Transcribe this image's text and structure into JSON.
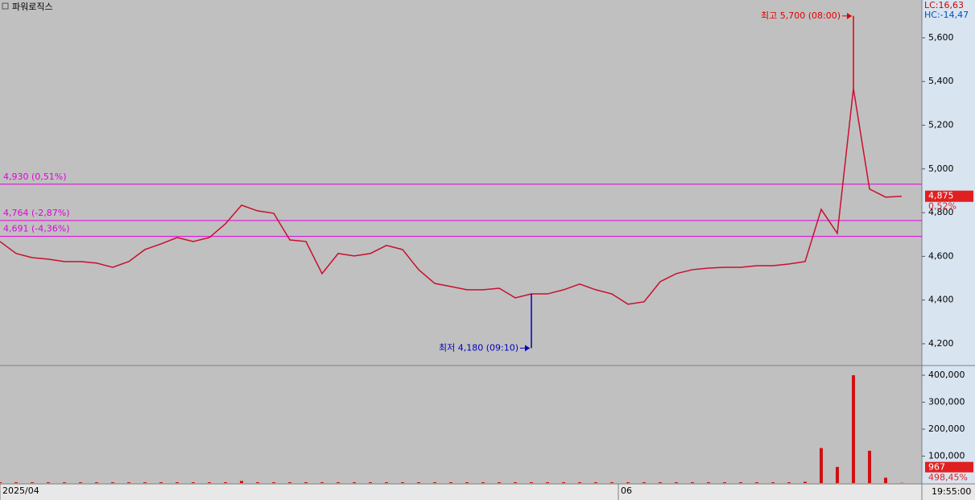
{
  "chart_data": {
    "type": "line",
    "title": "파워로직스",
    "indicators": [
      "LC:16,63",
      "HC:-14,47"
    ],
    "series": [
      {
        "color": "#c8102e",
        "values": [
          4668,
          4613,
          4594,
          4587,
          4576,
          4576,
          4569,
          4550,
          4576,
          4631,
          4657,
          4686,
          4668,
          4686,
          4749,
          4834,
          4808,
          4797,
          4675,
          4668,
          4521,
          4613,
          4602,
          4613,
          4650,
          4631,
          4539,
          4476,
          4462,
          4447,
          4447,
          4454,
          4410,
          4428,
          4428,
          4447,
          4473,
          4447,
          4428,
          4381,
          4392,
          4484,
          4521,
          4539,
          4546,
          4550,
          4550,
          4557,
          4557,
          4565,
          4576,
          4815,
          4705,
          5368,
          4908,
          4871,
          4875
        ]
      }
    ],
    "xlim": [
      0,
      57.25
    ],
    "xticks": [
      {
        "value": 0,
        "label": "2025/04"
      },
      {
        "value": 38.4,
        "label": "06"
      }
    ],
    "time_label": "19:55:00",
    "ylim": [
      4104,
      5773
    ],
    "yticks": [
      {
        "value": 4200,
        "label": "4,200"
      },
      {
        "value": 4400,
        "label": "4,400"
      },
      {
        "value": 4600,
        "label": "4,600"
      },
      {
        "value": 4800,
        "label": "4,800"
      },
      {
        "value": 5000,
        "label": "5,000"
      },
      {
        "value": 5200,
        "label": "5,200"
      },
      {
        "value": 5400,
        "label": "5,400"
      },
      {
        "value": 5600,
        "label": "5,600"
      }
    ],
    "levels": [
      {
        "value": 4930,
        "label": "4,930 (0,51%)"
      },
      {
        "value": 4764,
        "label": "4,764 (-2,87%)"
      },
      {
        "value": 4691,
        "label": "4,691 (-4,36%)"
      }
    ],
    "annotations": [
      {
        "label": "최고 5,700 (08:00)",
        "value": 5700,
        "index": 53,
        "color": "#e00000"
      },
      {
        "label": "최저 4,180 (09:10)",
        "value": 4180,
        "index": 33,
        "color": "#0000c0"
      }
    ],
    "last_price": {
      "value": 4875,
      "label": "4,875"
    },
    "change_label": "0,52%",
    "volume": {
      "color": "#d01010",
      "values": [
        3000,
        3000,
        3000,
        3000,
        3000,
        3000,
        3000,
        3000,
        3000,
        3000,
        3000,
        3000,
        3000,
        3000,
        3000,
        8000,
        3000,
        3000,
        3000,
        3000,
        3000,
        3000,
        3000,
        3000,
        3000,
        3000,
        3000,
        3000,
        3000,
        3000,
        3000,
        3000,
        3000,
        3000,
        3000,
        3000,
        3000,
        3000,
        3000,
        3000,
        3000,
        3000,
        3000,
        3000,
        3000,
        3000,
        3000,
        3000,
        3000,
        3000,
        5000,
        130000,
        60000,
        400000,
        120000,
        20000,
        967
      ],
      "ylim": [
        0,
        433000
      ],
      "yticks": [
        {
          "value": 100000,
          "label": "100,000"
        },
        {
          "value": 200000,
          "label": "200,000"
        },
        {
          "value": 300000,
          "label": "300,000"
        },
        {
          "value": 400000,
          "label": "400,000"
        }
      ],
      "last": {
        "value": 967,
        "label": "967"
      },
      "change_label": "498,45%"
    }
  }
}
